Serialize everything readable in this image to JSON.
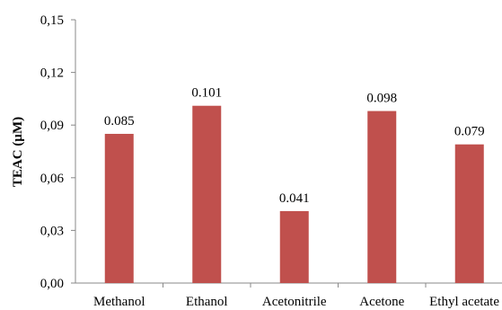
{
  "chart_data": {
    "type": "bar",
    "title": "",
    "xlabel": "",
    "ylabel": "TEAC (µM)",
    "categories": [
      "Methanol",
      "Ethanol",
      "Acetonitrile",
      "Acetone",
      "Ethyl acetate"
    ],
    "values": [
      0.085,
      0.101,
      0.041,
      0.098,
      0.079
    ],
    "data_labels": [
      "0.085",
      "0.101",
      "0.041",
      "0.098",
      "0.079"
    ],
    "ylim": [
      0,
      0.15
    ],
    "yticks": [
      0,
      0.03,
      0.06,
      0.09,
      0.12,
      0.15
    ],
    "ytick_labels": [
      "0,00",
      "0,03",
      "0,06",
      "0,09",
      "0,12",
      "0,15"
    ],
    "grid": false,
    "legend": "none",
    "bar_color": "#C0504D"
  }
}
